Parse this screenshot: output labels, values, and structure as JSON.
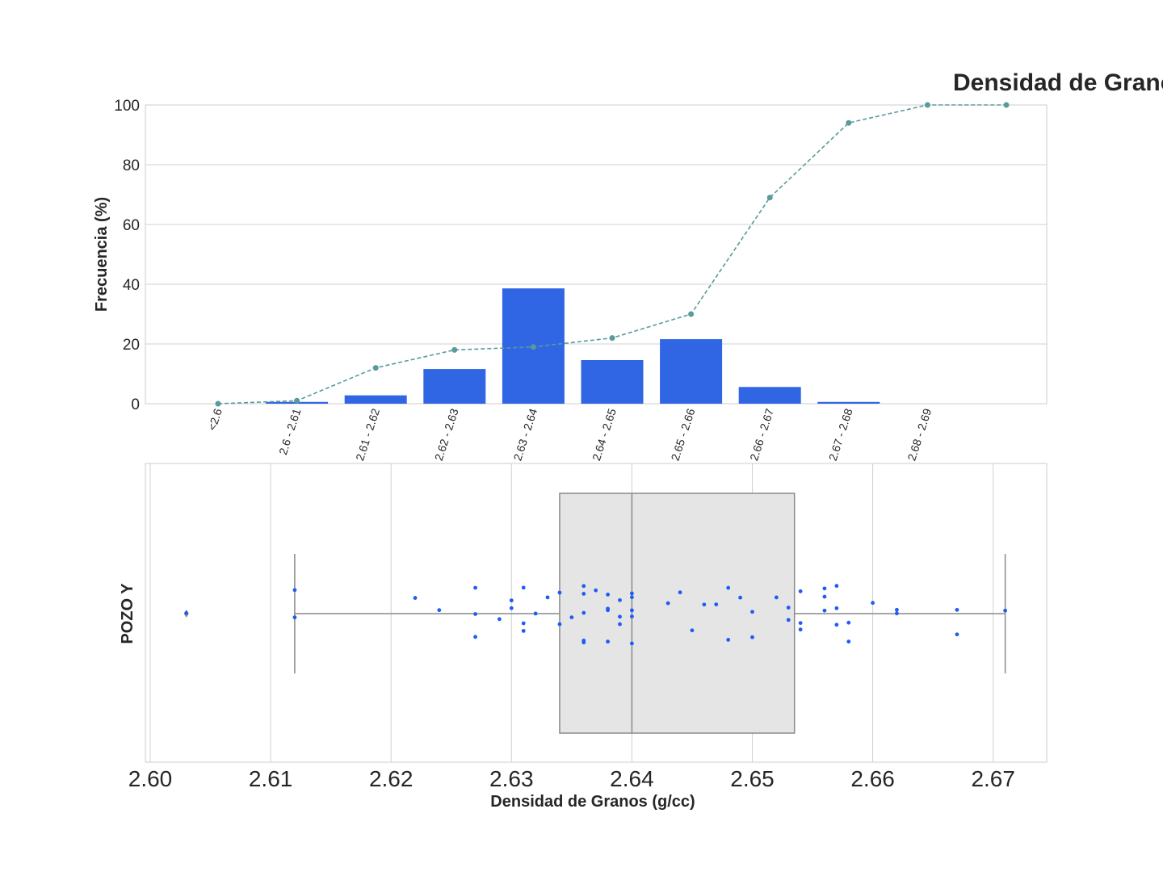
{
  "figure": {
    "title": "Densidad de Granos"
  },
  "chart_data": [
    {
      "type": "bar",
      "title": "Densidad de Granos",
      "xlabel": "",
      "ylabel": "Frecuencia (%)",
      "ylim": [
        0,
        100
      ],
      "yticks": [
        0,
        20,
        40,
        60,
        80,
        100
      ],
      "grid": true,
      "categories": [
        "<2.6",
        "2.6 - 2.61",
        "2.61 - 2.62",
        "2.62 - 2.63",
        "2.63 - 2.64",
        "2.64 - 2.65",
        "2.65 - 2.66",
        "2.66 - 2.67",
        "2.67 - 2.68",
        "2.68 - 2.69",
        ""
      ],
      "series": [
        {
          "type": "bar",
          "values": [
            0,
            0.6,
            2.8,
            11.6,
            38.6,
            14.6,
            21.6,
            5.6,
            0.6,
            0,
            0
          ],
          "color": "#3066e3"
        },
        {
          "type": "line",
          "style": "dashed",
          "values": [
            0,
            1,
            12,
            18,
            19,
            22,
            30,
            69,
            94,
            100,
            100
          ],
          "color": "#5a9a9a"
        }
      ]
    },
    {
      "type": "scatter",
      "subtype": "box-strip",
      "xlabel": "Densidad de Granos (g/cc)",
      "ylabel": "POZO Y",
      "xlim": [
        2.6,
        2.675
      ],
      "xticks": [
        "2.60",
        "2.61",
        "2.62",
        "2.63",
        "2.64",
        "2.65",
        "2.66",
        "2.67"
      ],
      "grid": true,
      "box": {
        "whisker_low": 2.612,
        "q1": 2.634,
        "median": 2.64,
        "q3": 2.6535,
        "whisker_high": 2.671,
        "outliers": [
          2.603
        ],
        "fill": "#e5e5e5",
        "edge": "#8a8a8a"
      },
      "points_color": "#1f5cf5",
      "points": [
        2.603,
        2.612,
        2.612,
        2.622,
        2.624,
        2.627,
        2.627,
        2.627,
        2.629,
        2.63,
        2.63,
        2.631,
        2.631,
        2.631,
        2.632,
        2.633,
        2.634,
        2.634,
        2.635,
        2.636,
        2.636,
        2.636,
        2.636,
        2.636,
        2.637,
        2.638,
        2.638,
        2.638,
        2.638,
        2.639,
        2.639,
        2.639,
        2.64,
        2.64,
        2.64,
        2.64,
        2.64,
        2.643,
        2.644,
        2.645,
        2.646,
        2.647,
        2.648,
        2.648,
        2.649,
        2.65,
        2.65,
        2.652,
        2.653,
        2.653,
        2.654,
        2.654,
        2.654,
        2.656,
        2.656,
        2.656,
        2.657,
        2.657,
        2.657,
        2.658,
        2.658,
        2.66,
        2.662,
        2.662,
        2.667,
        2.667,
        2.671
      ]
    }
  ]
}
